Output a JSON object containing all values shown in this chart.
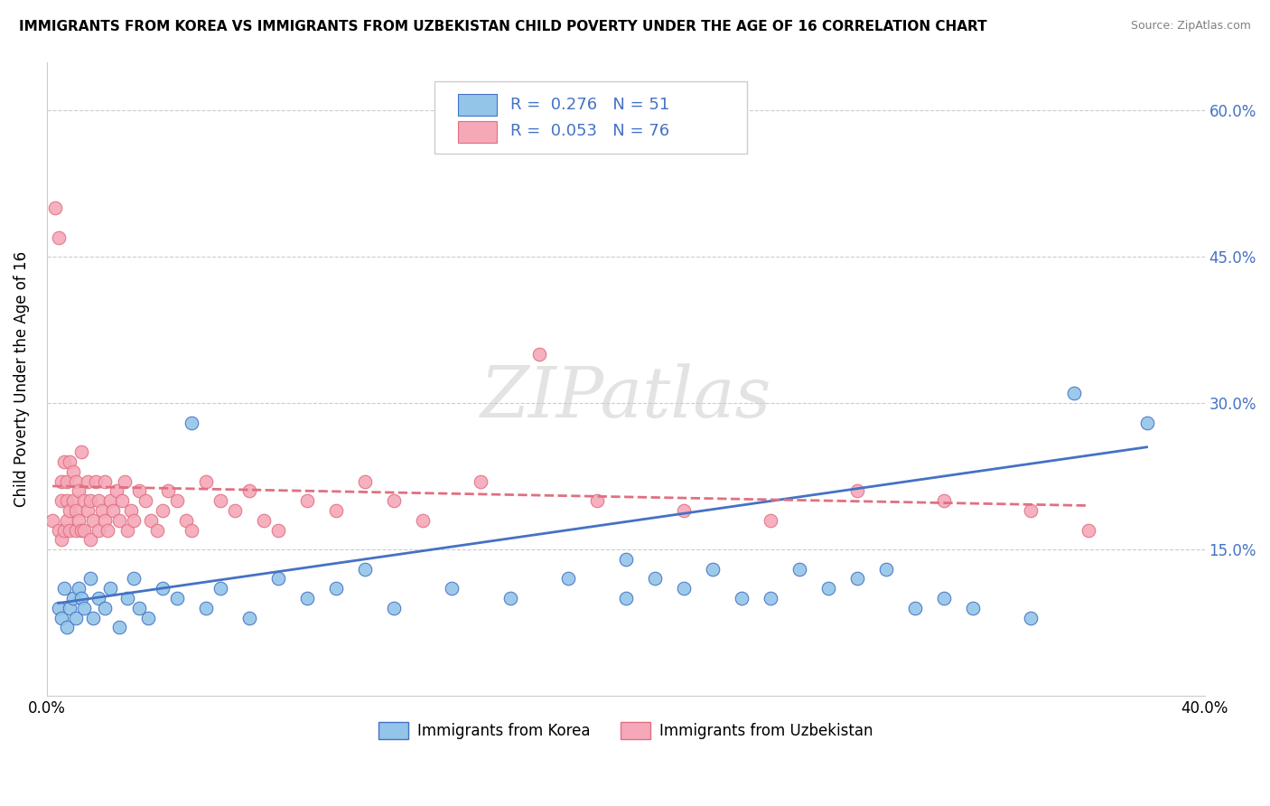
{
  "title": "IMMIGRANTS FROM KOREA VS IMMIGRANTS FROM UZBEKISTAN CHILD POVERTY UNDER THE AGE OF 16 CORRELATION CHART",
  "source": "Source: ZipAtlas.com",
  "ylabel": "Child Poverty Under the Age of 16",
  "xlim": [
    0.0,
    0.4
  ],
  "ylim": [
    0.0,
    0.65
  ],
  "xtick_positions": [
    0.0,
    0.1,
    0.2,
    0.3,
    0.4
  ],
  "xticklabels": [
    "0.0%",
    "",
    "",
    "",
    "40.0%"
  ],
  "ytick_positions": [
    0.0,
    0.15,
    0.3,
    0.45,
    0.6
  ],
  "yticklabels_right": [
    "",
    "15.0%",
    "30.0%",
    "45.0%",
    "60.0%"
  ],
  "legend_korea_label": "Immigrants from Korea",
  "legend_uzbekistan_label": "Immigrants from Uzbekistan",
  "korea_R": "0.276",
  "korea_N": "51",
  "uzbekistan_R": "0.053",
  "uzbekistan_N": "76",
  "korea_color": "#92C5E8",
  "uzbekistan_color": "#F5A8B8",
  "korea_edge_color": "#4472C4",
  "uzbekistan_edge_color": "#E07080",
  "korea_line_color": "#4472C4",
  "uzbekistan_line_color": "#E07080",
  "watermark": "ZIPatlas",
  "right_axis_color": "#4472C4",
  "korea_scatter_x": [
    0.004,
    0.005,
    0.006,
    0.007,
    0.008,
    0.009,
    0.01,
    0.011,
    0.012,
    0.013,
    0.015,
    0.016,
    0.018,
    0.02,
    0.022,
    0.025,
    0.028,
    0.03,
    0.032,
    0.035,
    0.04,
    0.045,
    0.05,
    0.055,
    0.06,
    0.07,
    0.08,
    0.09,
    0.1,
    0.11,
    0.12,
    0.14,
    0.16,
    0.18,
    0.2,
    0.22,
    0.24,
    0.26,
    0.28,
    0.3,
    0.2,
    0.21,
    0.23,
    0.25,
    0.27,
    0.29,
    0.31,
    0.32,
    0.34,
    0.355,
    0.38
  ],
  "korea_scatter_y": [
    0.09,
    0.08,
    0.11,
    0.07,
    0.09,
    0.1,
    0.08,
    0.11,
    0.1,
    0.09,
    0.12,
    0.08,
    0.1,
    0.09,
    0.11,
    0.07,
    0.1,
    0.12,
    0.09,
    0.08,
    0.11,
    0.1,
    0.28,
    0.09,
    0.11,
    0.08,
    0.12,
    0.1,
    0.11,
    0.13,
    0.09,
    0.11,
    0.1,
    0.12,
    0.1,
    0.11,
    0.1,
    0.13,
    0.12,
    0.09,
    0.14,
    0.12,
    0.13,
    0.1,
    0.11,
    0.13,
    0.1,
    0.09,
    0.08,
    0.31,
    0.28
  ],
  "uzbekistan_scatter_x": [
    0.002,
    0.003,
    0.004,
    0.004,
    0.005,
    0.005,
    0.005,
    0.006,
    0.006,
    0.007,
    0.007,
    0.007,
    0.008,
    0.008,
    0.008,
    0.009,
    0.009,
    0.01,
    0.01,
    0.01,
    0.011,
    0.011,
    0.012,
    0.012,
    0.013,
    0.013,
    0.014,
    0.014,
    0.015,
    0.015,
    0.016,
    0.017,
    0.018,
    0.018,
    0.019,
    0.02,
    0.02,
    0.021,
    0.022,
    0.023,
    0.024,
    0.025,
    0.026,
    0.027,
    0.028,
    0.029,
    0.03,
    0.032,
    0.034,
    0.036,
    0.038,
    0.04,
    0.042,
    0.045,
    0.048,
    0.05,
    0.055,
    0.06,
    0.065,
    0.07,
    0.075,
    0.08,
    0.09,
    0.1,
    0.11,
    0.12,
    0.13,
    0.15,
    0.17,
    0.19,
    0.22,
    0.25,
    0.28,
    0.31,
    0.34,
    0.36
  ],
  "uzbekistan_scatter_y": [
    0.18,
    0.5,
    0.47,
    0.17,
    0.16,
    0.2,
    0.22,
    0.17,
    0.24,
    0.2,
    0.22,
    0.18,
    0.17,
    0.24,
    0.19,
    0.23,
    0.2,
    0.17,
    0.22,
    0.19,
    0.18,
    0.21,
    0.17,
    0.25,
    0.2,
    0.17,
    0.19,
    0.22,
    0.16,
    0.2,
    0.18,
    0.22,
    0.17,
    0.2,
    0.19,
    0.18,
    0.22,
    0.17,
    0.2,
    0.19,
    0.21,
    0.18,
    0.2,
    0.22,
    0.17,
    0.19,
    0.18,
    0.21,
    0.2,
    0.18,
    0.17,
    0.19,
    0.21,
    0.2,
    0.18,
    0.17,
    0.22,
    0.2,
    0.19,
    0.21,
    0.18,
    0.17,
    0.2,
    0.19,
    0.22,
    0.2,
    0.18,
    0.22,
    0.35,
    0.2,
    0.19,
    0.18,
    0.21,
    0.2,
    0.19,
    0.17
  ],
  "korea_trendline_x": [
    0.004,
    0.38
  ],
  "korea_trendline_y": [
    0.095,
    0.255
  ],
  "uzbekistan_trendline_x": [
    0.002,
    0.36
  ],
  "uzbekistan_trendline_y": [
    0.215,
    0.195
  ]
}
